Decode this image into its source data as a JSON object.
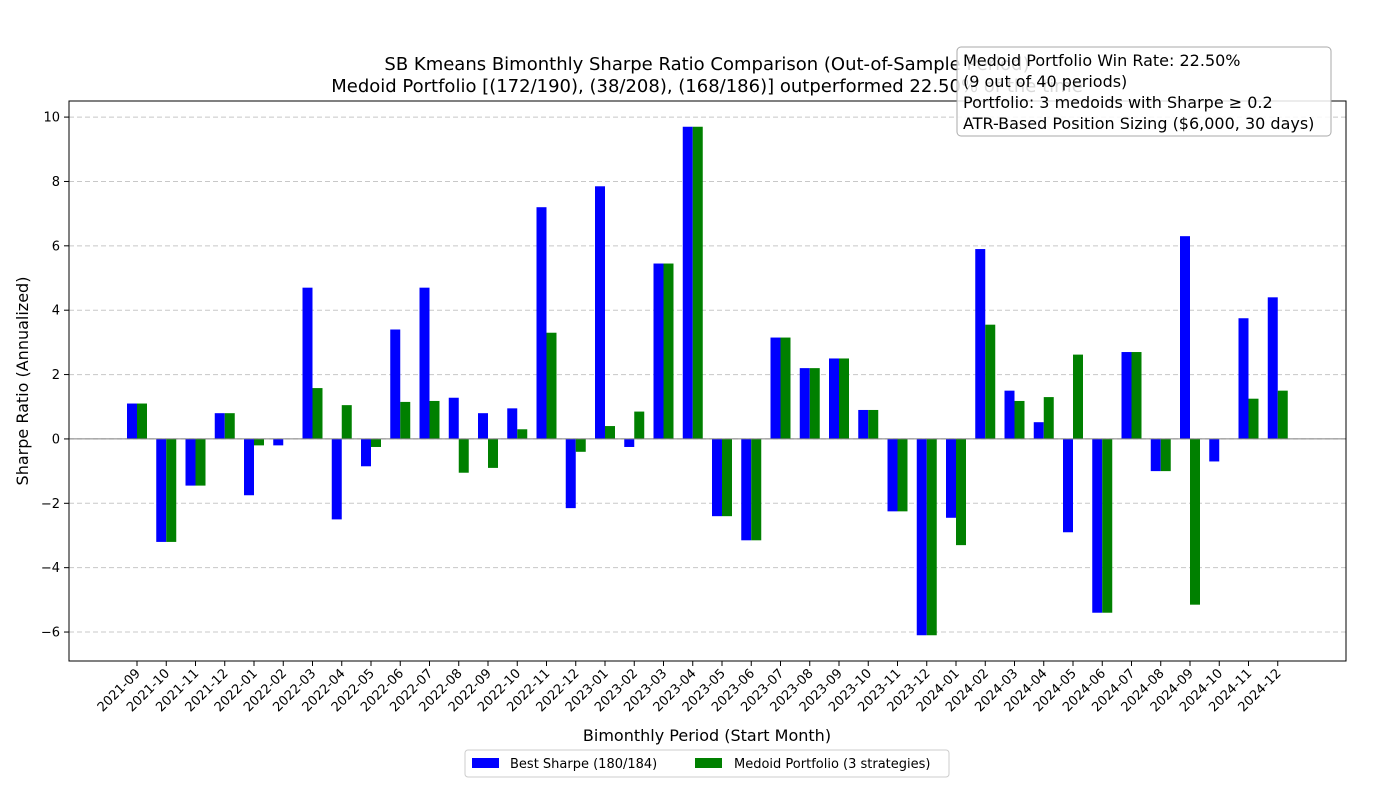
{
  "chart_data": {
    "type": "bar",
    "title_line1": "SB Kmeans Bimonthly Sharpe Ratio Comparison (Out-of-Sample Period)",
    "title_line2": "Medoid Portfolio [(172/190), (38/208), (168/186)] outperformed 22.50% of the time",
    "xlabel": "Bimonthly Period (Start Month)",
    "ylabel": "Sharpe Ratio (Annualized)",
    "ylim": [
      -6.9,
      10.5
    ],
    "yticks": [
      -6,
      -4,
      -2,
      0,
      2,
      4,
      6,
      8,
      10
    ],
    "grid": "y-dashed",
    "legend_position": "bottom-center",
    "categories": [
      "2021-09",
      "2021-10",
      "2021-11",
      "2021-12",
      "2022-01",
      "2022-02",
      "2022-03",
      "2022-04",
      "2022-05",
      "2022-06",
      "2022-07",
      "2022-08",
      "2022-09",
      "2022-10",
      "2022-11",
      "2022-12",
      "2023-01",
      "2023-02",
      "2023-03",
      "2023-04",
      "2023-05",
      "2023-06",
      "2023-07",
      "2023-08",
      "2023-09",
      "2023-10",
      "2023-11",
      "2023-12",
      "2024-01",
      "2024-02",
      "2024-03",
      "2024-04",
      "2024-05",
      "2024-06",
      "2024-07",
      "2024-08",
      "2024-09",
      "2024-10",
      "2024-11",
      "2024-12"
    ],
    "series": [
      {
        "name": "Best Sharpe (180/184)",
        "color": "#0000ff",
        "values": [
          1.1,
          -3.2,
          -1.45,
          0.8,
          -1.75,
          -0.2,
          4.7,
          -2.5,
          -0.85,
          3.4,
          4.7,
          1.28,
          0.8,
          0.95,
          7.2,
          -2.15,
          7.85,
          -0.25,
          5.45,
          9.7,
          -2.4,
          -3.15,
          3.15,
          2.2,
          2.5,
          0.9,
          -2.25,
          -6.1,
          -2.45,
          5.9,
          1.5,
          0.52,
          -2.9,
          -5.4,
          2.7,
          -1.0,
          6.3,
          -0.7,
          3.75,
          4.4
        ]
      },
      {
        "name": "Medoid Portfolio (3 strategies)",
        "color": "#008000",
        "values": [
          1.1,
          -3.2,
          -1.45,
          0.8,
          -0.2,
          0.0,
          1.58,
          1.05,
          -0.25,
          1.15,
          1.18,
          -1.05,
          -0.9,
          0.3,
          3.3,
          -0.4,
          0.4,
          0.85,
          5.45,
          9.7,
          -2.4,
          -3.15,
          3.15,
          2.2,
          2.5,
          0.9,
          -2.25,
          -6.1,
          -3.3,
          3.55,
          1.18,
          1.3,
          2.62,
          -5.4,
          2.7,
          -1.0,
          -5.15,
          0.0,
          1.25,
          1.5
        ]
      }
    ]
  },
  "info_box": {
    "line1": "Medoid Portfolio Win Rate: 22.50%",
    "line2": "(9 out of 40 periods)",
    "line3": "Portfolio: 3 medoids with Sharpe ≥ 0.2",
    "line4": "ATR-Based Position Sizing ($6,000, 30 days)"
  }
}
